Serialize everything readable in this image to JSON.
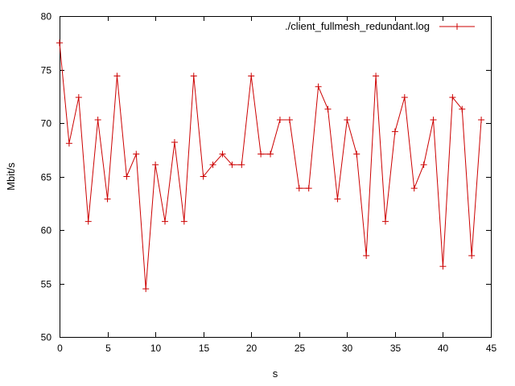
{
  "chart_data": {
    "type": "line",
    "title": "",
    "xlabel": "s",
    "ylabel": "Mbit/s",
    "xlim": [
      0,
      45
    ],
    "ylim": [
      50,
      80
    ],
    "x_ticks": [
      0,
      5,
      10,
      15,
      20,
      25,
      30,
      35,
      40,
      45
    ],
    "y_ticks": [
      50,
      55,
      60,
      65,
      70,
      75,
      80
    ],
    "grid": false,
    "legend_position": "top-right",
    "series": [
      {
        "name": "./client_fullmesh_redundant.log",
        "color": "#cc0000",
        "marker": "plus",
        "x": [
          0,
          1,
          2,
          3,
          4,
          5,
          6,
          7,
          8,
          9,
          10,
          11,
          12,
          13,
          14,
          15,
          16,
          17,
          18,
          19,
          20,
          21,
          22,
          23,
          24,
          25,
          26,
          27,
          28,
          29,
          30,
          31,
          32,
          33,
          34,
          35,
          36,
          37,
          38,
          39,
          40,
          41,
          42,
          43,
          44
        ],
        "y": [
          77.5,
          68.1,
          72.4,
          60.8,
          70.3,
          62.9,
          74.4,
          65.0,
          67.1,
          54.5,
          66.1,
          60.8,
          68.2,
          60.8,
          74.4,
          65.0,
          66.1,
          67.1,
          66.1,
          66.1,
          74.4,
          67.1,
          67.1,
          70.3,
          70.3,
          63.9,
          63.9,
          73.4,
          71.3,
          62.9,
          70.3,
          67.1,
          57.6,
          74.4,
          60.8,
          69.2,
          72.4,
          63.9,
          66.1,
          70.3,
          56.6,
          72.4,
          71.3,
          57.6,
          70.3
        ]
      }
    ]
  }
}
